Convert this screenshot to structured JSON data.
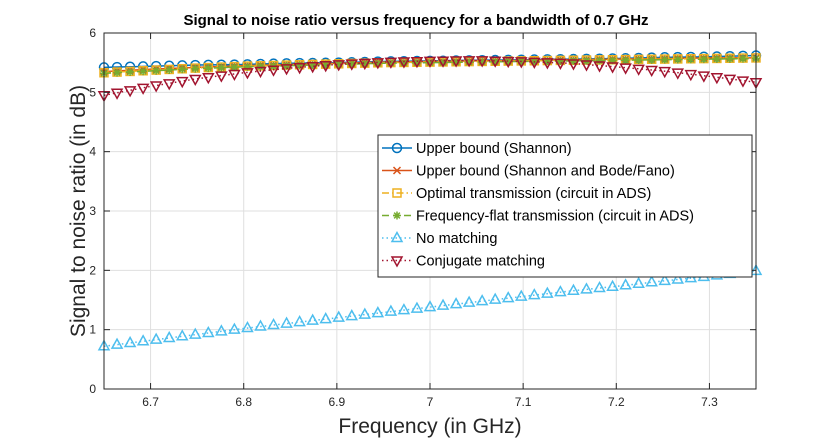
{
  "chart_data": {
    "type": "line",
    "title": "Signal to noise ratio versus frequency for a bandwidth of 0.7 GHz",
    "xlabel": "Frequency (in GHz)",
    "ylabel": "Signal to noise ratio (in dB)",
    "xlim": [
      6.65,
      7.35
    ],
    "ylim": [
      0,
      6
    ],
    "xticks": [
      6.7,
      6.8,
      6.9,
      7.0,
      7.1,
      7.2,
      7.3
    ],
    "xtick_labels": [
      "6.7",
      "6.8",
      "6.9",
      "7",
      "7.1",
      "7.2",
      "7.3"
    ],
    "yticks": [
      0,
      1,
      2,
      3,
      4,
      5,
      6
    ],
    "ytick_labels": [
      "0",
      "1",
      "2",
      "3",
      "4",
      "5",
      "6"
    ],
    "grid": true,
    "legend_position": "center-right",
    "series": [
      {
        "name": "Upper bound (Shannon)",
        "color": "#0072BD",
        "marker": "circle",
        "line": "solid",
        "x": [
          6.65,
          6.7,
          6.75,
          6.8,
          6.85,
          6.9,
          6.95,
          7.0,
          7.05,
          7.1,
          7.15,
          7.2,
          7.25,
          7.3,
          7.35
        ],
        "y": [
          5.42,
          5.44,
          5.46,
          5.47,
          5.49,
          5.5,
          5.52,
          5.53,
          5.54,
          5.55,
          5.56,
          5.57,
          5.59,
          5.6,
          5.62
        ]
      },
      {
        "name": "Upper bound (Shannon and Bode/Fano)",
        "color": "#D95319",
        "marker": "x",
        "line": "solid",
        "x": [
          6.65,
          6.7,
          6.75,
          6.8,
          6.85,
          6.9,
          6.95,
          7.0,
          7.05,
          7.1,
          7.15,
          7.2,
          7.25,
          7.3,
          7.35
        ],
        "y": [
          5.35,
          5.39,
          5.42,
          5.45,
          5.47,
          5.49,
          5.51,
          5.52,
          5.53,
          5.54,
          5.55,
          5.56,
          5.57,
          5.58,
          5.58
        ]
      },
      {
        "name": "Optimal transmission (circuit in ADS)",
        "color": "#EDB120",
        "marker": "square",
        "line": "dashdot",
        "x": [
          6.65,
          6.7,
          6.75,
          6.8,
          6.85,
          6.9,
          6.95,
          7.0,
          7.05,
          7.1,
          7.15,
          7.2,
          7.25,
          7.3,
          7.35
        ],
        "y": [
          5.33,
          5.37,
          5.41,
          5.44,
          5.46,
          5.48,
          5.5,
          5.51,
          5.52,
          5.53,
          5.54,
          5.55,
          5.56,
          5.57,
          5.58
        ]
      },
      {
        "name": "Frequency-flat transmission (circuit in ADS)",
        "color": "#77AC30",
        "marker": "asterisk",
        "line": "dashed",
        "x": [
          6.65,
          6.7,
          6.75,
          6.8,
          6.85,
          6.9,
          6.95,
          7.0,
          7.05,
          7.1,
          7.15,
          7.2,
          7.25,
          7.3,
          7.35
        ],
        "y": [
          5.32,
          5.36,
          5.4,
          5.43,
          5.45,
          5.47,
          5.49,
          5.5,
          5.51,
          5.52,
          5.53,
          5.54,
          5.55,
          5.56,
          5.57
        ]
      },
      {
        "name": "No matching",
        "color": "#4DBEEE",
        "marker": "triangle-up",
        "line": "dotted",
        "x": [
          6.65,
          6.7,
          6.75,
          6.8,
          6.85,
          6.9,
          6.95,
          7.0,
          7.05,
          7.1,
          7.15,
          7.2,
          7.25,
          7.3,
          7.35
        ],
        "y": [
          0.72,
          0.82,
          0.92,
          1.02,
          1.11,
          1.2,
          1.29,
          1.38,
          1.47,
          1.56,
          1.65,
          1.73,
          1.82,
          1.9,
          1.99
        ]
      },
      {
        "name": "Conjugate matching",
        "color": "#A2142F",
        "marker": "triangle-down",
        "line": "dotted",
        "x": [
          6.65,
          6.7,
          6.75,
          6.8,
          6.85,
          6.9,
          6.95,
          7.0,
          7.05,
          7.1,
          7.15,
          7.2,
          7.25,
          7.3,
          7.35
        ],
        "y": [
          4.95,
          5.1,
          5.23,
          5.33,
          5.41,
          5.47,
          5.51,
          5.53,
          5.54,
          5.52,
          5.49,
          5.43,
          5.36,
          5.27,
          5.17
        ]
      }
    ]
  }
}
